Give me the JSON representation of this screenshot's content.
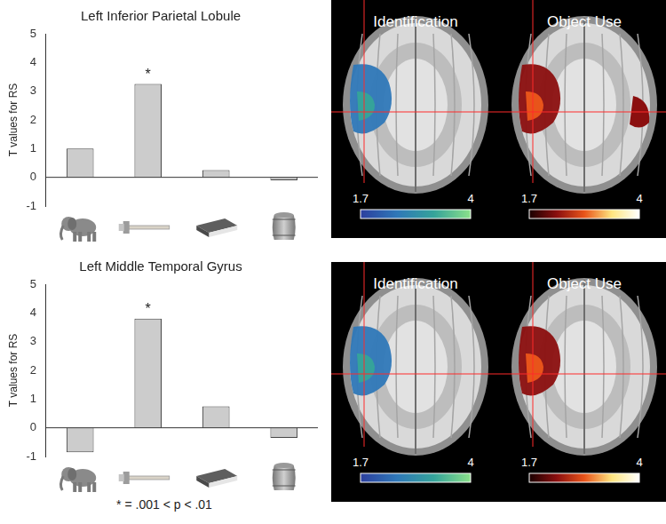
{
  "chart_data": [
    {
      "type": "bar",
      "title": "Left Inferior Parietal Lobule",
      "y_label": "T values for RS",
      "categories": [
        null,
        null,
        null,
        null
      ],
      "values": [
        1.0,
        3.25,
        0.25,
        -0.1
      ],
      "annotations": [
        null,
        "*",
        null,
        null
      ],
      "color": "#cccccc",
      "ylim": [
        -1,
        5
      ],
      "yticks": [
        -1,
        0,
        1,
        2,
        3,
        4,
        5
      ],
      "grid": false
    },
    {
      "type": "bar",
      "title": "Left Middle Temporal Gyrus",
      "y_label": "T values for RS",
      "categories": [
        null,
        null,
        null,
        null
      ],
      "values": [
        -0.85,
        3.8,
        0.75,
        -0.35
      ],
      "annotations": [
        null,
        "*",
        null,
        null
      ],
      "color": "#cccccc",
      "ylim": [
        -1,
        5
      ],
      "yticks": [
        -1,
        0,
        1,
        2,
        3,
        4,
        5
      ],
      "grid": false
    }
  ],
  "footnote": "* = .001 < p < .01",
  "brain_maps": [
    {
      "panels": [
        {
          "label": "Identification",
          "colorbar": {
            "range": [
              1.7,
              4
            ],
            "ticks": [
              1.7,
              4
            ]
          },
          "colors": [
            "#2c3f9e",
            "#2f78b8",
            "#35a39a",
            "#8be08a"
          ]
        },
        {
          "label": "Object Use",
          "colorbar": {
            "range": [
              1.7,
              4
            ],
            "ticks": [
              1.7,
              4
            ]
          },
          "colors": [
            "#1a0000",
            "#8b0f0f",
            "#e8541a",
            "#ffe680",
            "#ffffff"
          ]
        }
      ]
    },
    {
      "panels": [
        {
          "label": "Identification",
          "colorbar": {
            "range": [
              1.7,
              4
            ],
            "ticks": [
              1.7,
              4
            ]
          },
          "colors": [
            "#2c3f9e",
            "#2f78b8",
            "#35a39a",
            "#8be08a"
          ]
        },
        {
          "label": "Object Use",
          "colorbar": {
            "range": [
              1.7,
              4
            ],
            "ticks": [
              1.7,
              4
            ]
          },
          "colors": [
            "#1a0000",
            "#8b0f0f",
            "#e8541a",
            "#ffe680",
            "#ffffff"
          ]
        }
      ]
    }
  ]
}
